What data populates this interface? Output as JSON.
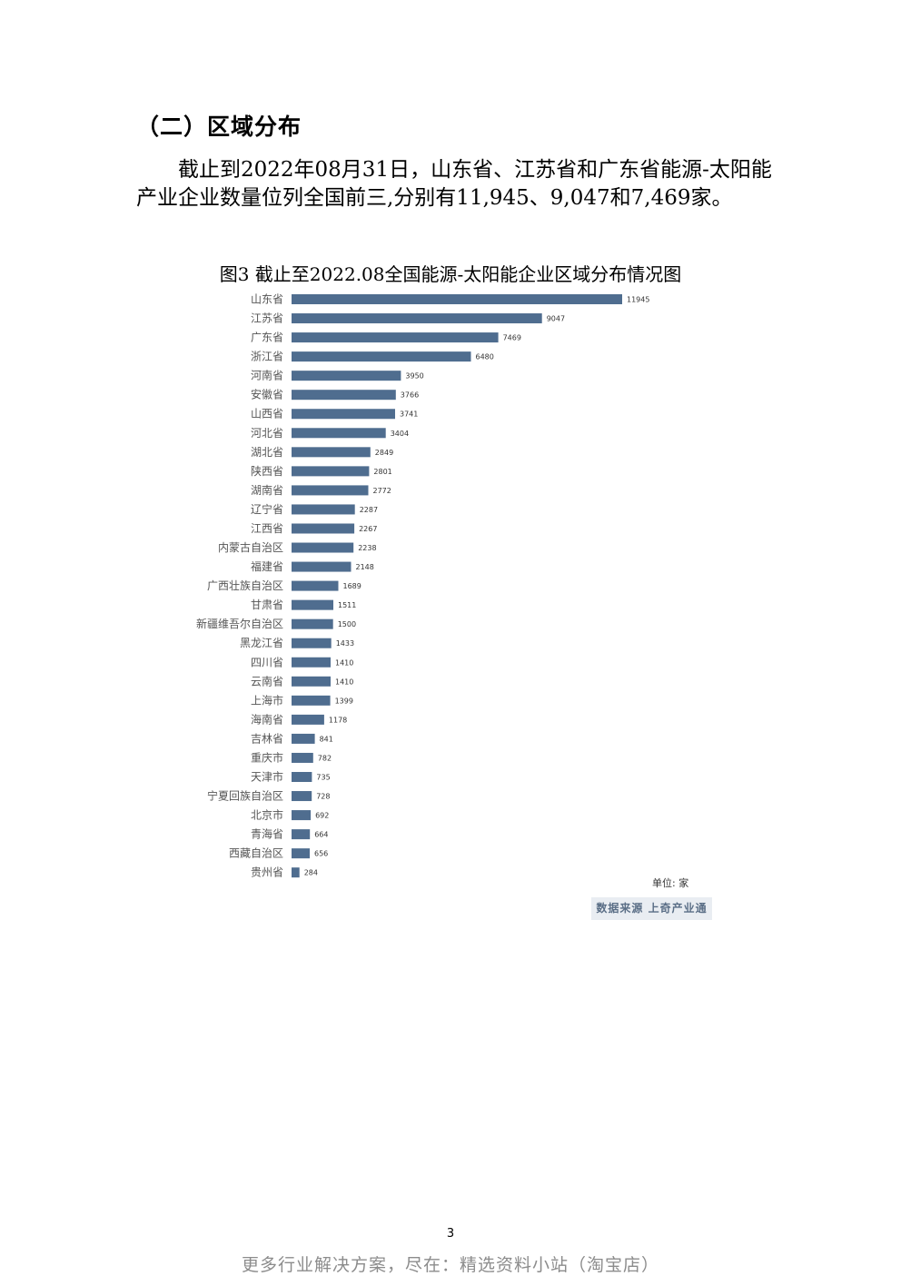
{
  "section": {
    "title": "（二）区域分布"
  },
  "paragraph": "截止到2022年08月31日，山东省、江苏省和广东省能源-太阳能产业企业数量位列全国前三,分别有11,945、9,047和7,469家。",
  "figure": {
    "caption": "图3 截止至2022.08全国能源-太阳能企业区域分布情况图",
    "unit_label": "单位: 家",
    "source_label": "数据来源 上奇产业通"
  },
  "chart_data": {
    "type": "bar",
    "orientation": "horizontal",
    "categories": [
      "山东省",
      "江苏省",
      "广东省",
      "浙江省",
      "河南省",
      "安徽省",
      "山西省",
      "河北省",
      "湖北省",
      "陕西省",
      "湖南省",
      "辽宁省",
      "江西省",
      "内蒙古自治区",
      "福建省",
      "广西壮族自治区",
      "甘肃省",
      "新疆维吾尔自治区",
      "黑龙江省",
      "四川省",
      "云南省",
      "上海市",
      "海南省",
      "吉林省",
      "重庆市",
      "天津市",
      "宁夏回族自治区",
      "北京市",
      "青海省",
      "西藏自治区",
      "贵州省"
    ],
    "values": [
      11945,
      9047,
      7469,
      6480,
      3950,
      3766,
      3741,
      3404,
      2849,
      2801,
      2772,
      2287,
      2267,
      2238,
      2148,
      1689,
      1511,
      1500,
      1433,
      1410,
      1410,
      1399,
      1178,
      841,
      782,
      735,
      728,
      692,
      664,
      656,
      284
    ],
    "data_labels": true,
    "bar_color": "#4f6d8f",
    "grid": false
  },
  "page": {
    "number": "3",
    "footer": "更多行业解决方案，尽在：精选资料小站（淘宝店）"
  }
}
